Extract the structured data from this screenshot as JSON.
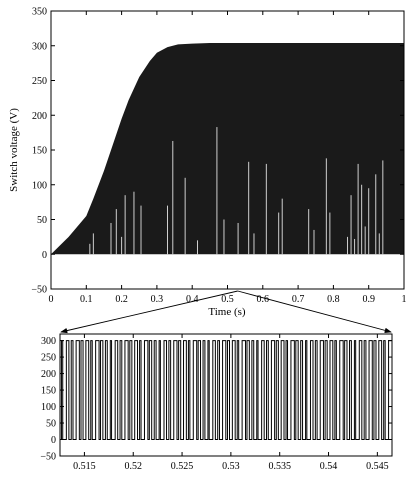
{
  "chart_data": [
    {
      "type": "area",
      "xlabel": "Time (s)",
      "ylabel": "Switch voltage (V)",
      "xlim": [
        0,
        1
      ],
      "ylim": [
        -50,
        350
      ],
      "xticks": [
        "0",
        "0.1",
        "0.2",
        "0.3",
        "0.4",
        "0.5",
        "0.6",
        "0.7",
        "0.8",
        "0.9",
        "1"
      ],
      "yticks": [
        "−50",
        "0",
        "50",
        "100",
        "150",
        "200",
        "250",
        "300",
        "350"
      ],
      "grid": false,
      "envelope": {
        "x": [
          0,
          0.05,
          0.1,
          0.12,
          0.15,
          0.18,
          0.2,
          0.22,
          0.25,
          0.28,
          0.3,
          0.33,
          0.36,
          0.4,
          0.45,
          0.5,
          0.6,
          0.8,
          1.0
        ],
        "y": [
          0,
          25,
          55,
          80,
          120,
          165,
          195,
          222,
          255,
          278,
          290,
          298,
          302,
          303,
          304,
          304,
          304,
          304,
          304
        ]
      },
      "fill_color": "#1a1a1a",
      "spike_color": "#cfcfcf",
      "spikes": {
        "x": [
          0.11,
          0.12,
          0.17,
          0.185,
          0.2,
          0.21,
          0.235,
          0.255,
          0.33,
          0.345,
          0.38,
          0.415,
          0.47,
          0.49,
          0.53,
          0.56,
          0.575,
          0.61,
          0.645,
          0.655,
          0.73,
          0.745,
          0.78,
          0.79,
          0.84,
          0.85,
          0.86,
          0.87,
          0.88,
          0.89,
          0.9,
          0.92,
          0.93,
          0.94
        ],
        "y": [
          15,
          30,
          45,
          65,
          25,
          85,
          90,
          70,
          70,
          163,
          110,
          20,
          183,
          50,
          45,
          133,
          30,
          130,
          60,
          80,
          65,
          35,
          138,
          60,
          25,
          85,
          22,
          130,
          100,
          40,
          95,
          115,
          30,
          135
        ]
      },
      "zoom_window": [
        0.512,
        0.546
      ]
    },
    {
      "type": "line",
      "xlabel": "",
      "ylabel": "",
      "xlim": [
        0.5125,
        0.5465
      ],
      "ylim": [
        -50,
        320
      ],
      "xticks": [
        "0.515",
        "0.52",
        "0.525",
        "0.53",
        "0.535",
        "0.54",
        "0.545"
      ],
      "yticks": [
        "−50",
        "0",
        "50",
        "100",
        "150",
        "200",
        "250",
        "300"
      ],
      "grid": false,
      "high_value": 300,
      "low_value": 0,
      "pulse_period": 0.0005,
      "pulse_widths": [
        0.00013,
        0.00026,
        0.00018,
        0.00033,
        0.00021,
        0.00029,
        0.00015,
        0.00035,
        0.00024,
        0.00019
      ]
    }
  ]
}
